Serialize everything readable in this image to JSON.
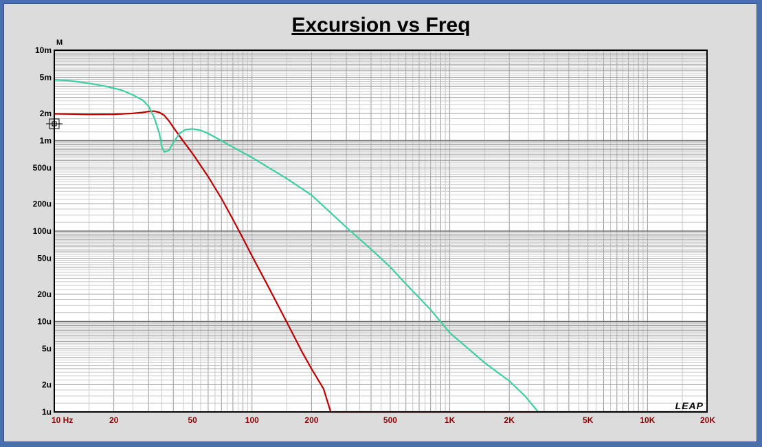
{
  "chart_data": {
    "type": "line",
    "title": "Excursion vs Freq",
    "ylabel": "M",
    "xscale": "log",
    "yscale": "log",
    "xlim": [
      10,
      20000
    ],
    "ylim": [
      1e-06,
      0.01
    ],
    "grid": true,
    "x_tick_labels": [
      {
        "value": 10,
        "label": "10  Hz"
      },
      {
        "value": 20,
        "label": "20"
      },
      {
        "value": 50,
        "label": "50"
      },
      {
        "value": 100,
        "label": "100"
      },
      {
        "value": 200,
        "label": "200"
      },
      {
        "value": 500,
        "label": "500"
      },
      {
        "value": 1000,
        "label": "1K"
      },
      {
        "value": 2000,
        "label": "2K"
      },
      {
        "value": 5000,
        "label": "5K"
      },
      {
        "value": 10000,
        "label": "10K"
      },
      {
        "value": 20000,
        "label": "20K"
      }
    ],
    "y_tick_labels": [
      {
        "value": 0.01,
        "label": "10m"
      },
      {
        "value": 0.005,
        "label": "5m"
      },
      {
        "value": 0.002,
        "label": "2m"
      },
      {
        "value": 0.001,
        "label": "1m"
      },
      {
        "value": 0.0005,
        "label": "500u"
      },
      {
        "value": 0.0002,
        "label": "200u"
      },
      {
        "value": 0.0001,
        "label": "100u"
      },
      {
        "value": 5e-05,
        "label": "50u"
      },
      {
        "value": 2e-05,
        "label": "20u"
      },
      {
        "value": 1e-05,
        "label": "10u"
      },
      {
        "value": 5e-06,
        "label": "5u"
      },
      {
        "value": 2e-06,
        "label": "2u"
      },
      {
        "value": 1e-06,
        "label": "1u"
      }
    ],
    "series": [
      {
        "color": "#c00000",
        "points": [
          [
            10,
            0.00198
          ],
          [
            12,
            0.00197
          ],
          [
            15,
            0.00195
          ],
          [
            20,
            0.00196
          ],
          [
            25,
            0.002
          ],
          [
            28,
            0.00205
          ],
          [
            30,
            0.0021
          ],
          [
            32,
            0.00212
          ],
          [
            34,
            0.00205
          ],
          [
            36,
            0.0019
          ],
          [
            38,
            0.00165
          ],
          [
            40,
            0.0014
          ],
          [
            45,
            0.00098
          ],
          [
            50,
            0.00072
          ],
          [
            60,
            0.0004
          ],
          [
            70,
            0.00023
          ],
          [
            80,
            0.000135
          ],
          [
            90,
            8.3e-05
          ],
          [
            100,
            5.3e-05
          ],
          [
            120,
            2.5e-05
          ],
          [
            150,
            9.8e-06
          ],
          [
            180,
            4.5e-06
          ],
          [
            200,
            3e-06
          ],
          [
            230,
            1.8e-06
          ],
          [
            250,
            1e-06
          ],
          [
            20000,
            1e-06
          ]
        ]
      },
      {
        "color": "#3dcfa3",
        "points": [
          [
            10,
            0.0047
          ],
          [
            12,
            0.0046
          ],
          [
            15,
            0.0043
          ],
          [
            18,
            0.004
          ],
          [
            20,
            0.0038
          ],
          [
            22,
            0.0036
          ],
          [
            25,
            0.0032
          ],
          [
            28,
            0.0028
          ],
          [
            30,
            0.0024
          ],
          [
            32,
            0.0018
          ],
          [
            34,
            0.0012
          ],
          [
            35,
            0.00085
          ],
          [
            36,
            0.00075
          ],
          [
            38,
            0.00078
          ],
          [
            40,
            0.00095
          ],
          [
            43,
            0.0012
          ],
          [
            46,
            0.00132
          ],
          [
            50,
            0.00135
          ],
          [
            55,
            0.0013
          ],
          [
            60,
            0.0012
          ],
          [
            70,
            0.001
          ],
          [
            80,
            0.00085
          ],
          [
            100,
            0.00065
          ],
          [
            150,
            0.00038
          ],
          [
            200,
            0.00025
          ],
          [
            300,
            0.00011
          ],
          [
            400,
            6.3e-05
          ],
          [
            500,
            4e-05
          ],
          [
            600,
            2.6e-05
          ],
          [
            800,
            1.35e-05
          ],
          [
            1000,
            7.5e-06
          ],
          [
            1500,
            3.5e-06
          ],
          [
            2000,
            2.2e-06
          ],
          [
            2400,
            1.5e-06
          ],
          [
            2800,
            1e-06
          ],
          [
            20000,
            1e-06
          ]
        ]
      }
    ],
    "logo": "LEAP"
  }
}
